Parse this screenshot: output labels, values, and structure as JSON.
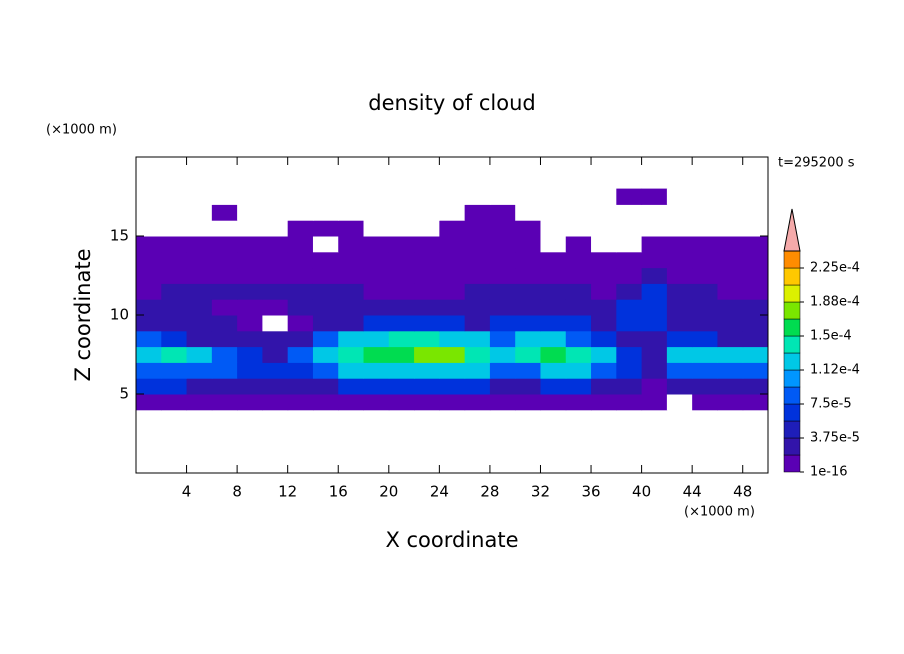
{
  "chart_data": {
    "type": "contour",
    "title": "density of cloud",
    "annotation": "t=295200 s",
    "xlabel": "X coordinate",
    "ylabel": "Z coordinate",
    "xunit": "(×1000 m)",
    "yunit": "(×1000 m)",
    "xlim": [
      0,
      50
    ],
    "ylim": [
      0,
      20
    ],
    "xticks": [
      4,
      8,
      12,
      16,
      20,
      24,
      28,
      32,
      36,
      40,
      44,
      48
    ],
    "yticks": [
      5,
      10,
      15
    ],
    "x": [
      1,
      3,
      5,
      7,
      9,
      11,
      13,
      15,
      17,
      19,
      21,
      23,
      25,
      27,
      29,
      31,
      33,
      35,
      37,
      39,
      41,
      43,
      45,
      47,
      49
    ],
    "z": [
      4.5,
      5.5,
      6.5,
      7.5,
      8.5,
      9.5,
      10.5,
      11.5,
      12.5,
      13.5,
      14.5,
      15.5,
      16.5,
      17.5
    ],
    "values": [
      [
        1e-05,
        1e-05,
        1e-05,
        1e-05,
        1e-05,
        1e-05,
        1e-05,
        1e-05,
        1e-05,
        1e-05,
        1e-05,
        1e-05,
        1e-05,
        1e-05,
        1e-05,
        1e-05,
        1e-05,
        1e-05,
        1e-05,
        1e-05,
        1e-05,
        0,
        1e-05,
        1e-05,
        1e-05
      ],
      [
        6e-05,
        6e-05,
        3e-05,
        3e-05,
        3e-05,
        3e-05,
        3e-05,
        3e-05,
        6e-05,
        6e-05,
        6e-05,
        6e-05,
        6e-05,
        6e-05,
        3e-05,
        3e-05,
        6e-05,
        6e-05,
        3e-05,
        3e-05,
        1e-05,
        3e-05,
        3e-05,
        3e-05,
        3e-05
      ],
      [
        9e-05,
        9e-05,
        9e-05,
        9e-05,
        6e-05,
        6e-05,
        6e-05,
        9e-05,
        0.00012,
        0.00012,
        0.00012,
        0.00012,
        0.00012,
        0.00012,
        9e-05,
        9e-05,
        0.00012,
        0.00012,
        9e-05,
        6e-05,
        3e-05,
        9e-05,
        9e-05,
        9e-05,
        9e-05
      ],
      [
        0.00012,
        0.00014,
        0.00012,
        9e-05,
        6e-05,
        3e-05,
        9e-05,
        0.00012,
        0.00014,
        0.00016,
        0.00016,
        0.00018,
        0.00018,
        0.00014,
        0.00012,
        0.00014,
        0.00016,
        0.00014,
        0.00012,
        6e-05,
        3e-05,
        0.00012,
        0.00012,
        0.00012,
        0.00012
      ],
      [
        9e-05,
        6e-05,
        3e-05,
        3e-05,
        3e-05,
        3e-05,
        3e-05,
        9e-05,
        0.00012,
        0.00012,
        0.00014,
        0.00014,
        0.00012,
        0.00012,
        9e-05,
        0.00012,
        0.00012,
        9e-05,
        6e-05,
        3e-05,
        3e-05,
        6e-05,
        6e-05,
        3e-05,
        3e-05
      ],
      [
        3e-05,
        3e-05,
        3e-05,
        3e-05,
        1e-05,
        0,
        1e-05,
        3e-05,
        3e-05,
        6e-05,
        6e-05,
        6e-05,
        6e-05,
        3e-05,
        6e-05,
        6e-05,
        6e-05,
        6e-05,
        3e-05,
        6e-05,
        6e-05,
        3e-05,
        3e-05,
        3e-05,
        3e-05
      ],
      [
        3e-05,
        3e-05,
        3e-05,
        1e-05,
        1e-05,
        1e-05,
        3e-05,
        3e-05,
        3e-05,
        3e-05,
        3e-05,
        3e-05,
        3e-05,
        3e-05,
        3e-05,
        3e-05,
        3e-05,
        3e-05,
        3e-05,
        6e-05,
        6e-05,
        3e-05,
        3e-05,
        3e-05,
        3e-05
      ],
      [
        1e-05,
        3e-05,
        3e-05,
        3e-05,
        3e-05,
        3e-05,
        3e-05,
        3e-05,
        3e-05,
        1e-05,
        1e-05,
        1e-05,
        1e-05,
        3e-05,
        3e-05,
        3e-05,
        3e-05,
        3e-05,
        1e-05,
        3e-05,
        6e-05,
        3e-05,
        3e-05,
        1e-05,
        1e-05
      ],
      [
        1e-05,
        1e-05,
        1e-05,
        1e-05,
        1e-05,
        1e-05,
        1e-05,
        1e-05,
        1e-05,
        1e-05,
        1e-05,
        1e-05,
        1e-05,
        1e-05,
        1e-05,
        1e-05,
        1e-05,
        1e-05,
        1e-05,
        1e-05,
        3e-05,
        1e-05,
        1e-05,
        1e-05,
        1e-05
      ],
      [
        1e-05,
        1e-05,
        1e-05,
        1e-05,
        1e-05,
        1e-05,
        1e-05,
        1e-05,
        1e-05,
        1e-05,
        1e-05,
        1e-05,
        1e-05,
        1e-05,
        1e-05,
        1e-05,
        1e-05,
        1e-05,
        1e-05,
        1e-05,
        1e-05,
        1e-05,
        1e-05,
        1e-05,
        1e-05
      ],
      [
        1e-05,
        1e-05,
        1e-05,
        1e-05,
        1e-05,
        1e-05,
        1e-05,
        0,
        1e-05,
        1e-05,
        1e-05,
        1e-05,
        1e-05,
        1e-05,
        1e-05,
        1e-05,
        0,
        1e-05,
        0,
        0,
        1e-05,
        1e-05,
        1e-05,
        1e-05,
        1e-05
      ],
      [
        0,
        0,
        0,
        0,
        0,
        0,
        1e-05,
        1e-05,
        1e-05,
        0,
        0,
        0,
        1e-05,
        1e-05,
        1e-05,
        1e-05,
        0,
        0,
        0,
        0,
        0,
        0,
        0,
        0,
        0
      ],
      [
        0,
        0,
        0,
        1e-05,
        0,
        0,
        0,
        0,
        0,
        0,
        0,
        0,
        0,
        1e-05,
        1e-05,
        0,
        0,
        0,
        0,
        0,
        0,
        0,
        0,
        0,
        0
      ],
      [
        0,
        0,
        0,
        0,
        0,
        0,
        0,
        0,
        0,
        0,
        0,
        0,
        0,
        0,
        0,
        0,
        0,
        0,
        0,
        1e-05,
        1e-05,
        0,
        0,
        0,
        0
      ]
    ],
    "colorbar": {
      "levels": [
        1e-16,
        1.875e-05,
        3.75e-05,
        5.625e-05,
        7.5e-05,
        9.375e-05,
        0.0001125,
        0.00013125,
        0.00015,
        0.00016875,
        0.0001875,
        0.00020625,
        0.000225,
        0.00024375
      ],
      "colors": [
        "#5a00b4",
        "#3214aa",
        "#1e1eb9",
        "#0032dc",
        "#005af5",
        "#0096ff",
        "#00c8e6",
        "#00e6b4",
        "#00dc50",
        "#7ae600",
        "#dcf000",
        "#ffc800",
        "#ff8c00"
      ],
      "extend_color": "#f5aaaa",
      "ticks": [
        {
          "value": 1e-16,
          "label": "1e-16"
        },
        {
          "value": 3.75e-05,
          "label": "3.75e-5"
        },
        {
          "value": 7.5e-05,
          "label": "7.5e-5"
        },
        {
          "value": 0.0001125,
          "label": "1.12e-4"
        },
        {
          "value": 0.00015,
          "label": "1.5e-4"
        },
        {
          "value": 0.0001875,
          "label": "1.88e-4"
        },
        {
          "value": 0.000225,
          "label": "2.25e-4"
        }
      ]
    }
  }
}
